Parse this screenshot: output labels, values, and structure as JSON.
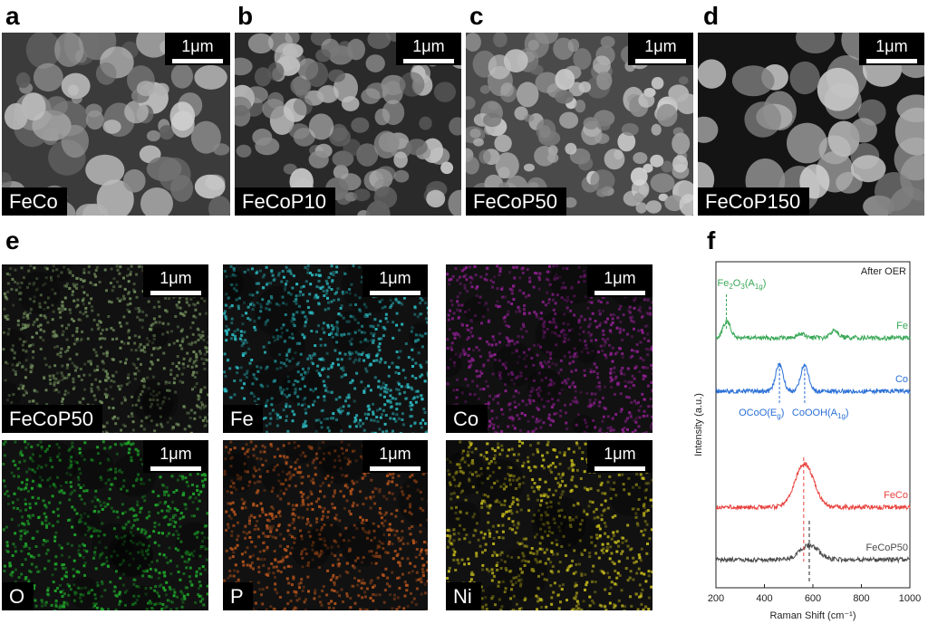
{
  "panels_top": [
    {
      "letter": "a",
      "name": "FeCo",
      "scale": "1μm",
      "texture": "feco"
    },
    {
      "letter": "b",
      "name": "FeCoP10",
      "scale": "1μm",
      "texture": "p10"
    },
    {
      "letter": "c",
      "name": "FeCoP50",
      "scale": "1μm",
      "texture": "p50"
    },
    {
      "letter": "d",
      "name": "FeCoP150",
      "scale": "1μm",
      "texture": "p150"
    }
  ],
  "panel_e": {
    "letter": "e",
    "maps": [
      {
        "name": "FeCoP50",
        "scale": "1μm",
        "color": "#6e8a5a"
      },
      {
        "name": "Fe",
        "scale": "1μm",
        "color": "#2bb8c0"
      },
      {
        "name": "Co",
        "scale": "1μm",
        "color": "#8a1f8c"
      },
      {
        "name": "O",
        "scale": "1μm",
        "color": "#1fa52a"
      },
      {
        "name": "P",
        "scale": "1μm",
        "color": "#b0521c"
      },
      {
        "name": "Ni",
        "scale": "1μm",
        "color": "#bdb31c"
      }
    ]
  },
  "panel_f": {
    "letter": "f"
  },
  "chart_data": {
    "type": "line",
    "title": "After OER",
    "xlabel": "Raman Shift (cm⁻¹)",
    "ylabel": "Intensity (a.u.)",
    "xlim": [
      200,
      1000
    ],
    "xticks": [
      "200",
      "400",
      "600",
      "800",
      "1000"
    ],
    "series": [
      {
        "name": "Fe",
        "color": "#3aa857",
        "peaks": [
          [
            245,
            1.0
          ],
          [
            550,
            0.25
          ],
          [
            690,
            0.5
          ]
        ]
      },
      {
        "name": "Co",
        "color": "#2a6fd6",
        "peaks": [
          [
            462,
            1.0
          ],
          [
            566,
            1.0
          ]
        ]
      },
      {
        "name": "FeCo",
        "color": "#e8423e",
        "peaks": [
          [
            565,
            1.0
          ]
        ]
      },
      {
        "name": "FeCoP50",
        "color": "#4a4a4a",
        "peaks": [
          [
            585,
            1.0
          ]
        ]
      }
    ],
    "annotations": [
      {
        "text": "Fe2O3(A1g)",
        "x": 243
      },
      {
        "text": "OCoO(Eg)",
        "x": 462
      },
      {
        "text": "CoOOH(A1g)",
        "x": 566
      }
    ]
  }
}
